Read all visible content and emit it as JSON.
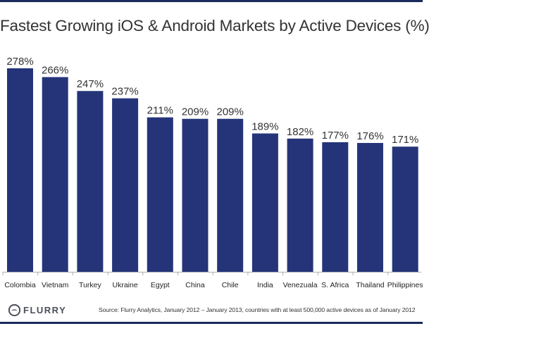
{
  "chart_data": {
    "type": "bar",
    "title": "Fastest Growing iOS & Android Markets by Active Devices (%)",
    "categories": [
      "Colombia",
      "Vietnam",
      "Turkey",
      "Ukraine",
      "Egypt",
      "China",
      "Chile",
      "India",
      "Venezuala",
      "S. Africa",
      "Thailand",
      "Philippines"
    ],
    "values": [
      278,
      266,
      247,
      237,
      211,
      209,
      209,
      189,
      182,
      177,
      176,
      171
    ],
    "data_labels": [
      "278%",
      "266%",
      "247%",
      "237%",
      "211%",
      "209%",
      "209%",
      "189%",
      "182%",
      "177%",
      "176%",
      "171%"
    ],
    "xlabel": "",
    "ylabel": "",
    "ylim": [
      0,
      278
    ],
    "grid": false,
    "legend": "none",
    "bar_color": "#253479"
  },
  "footer": {
    "logo_text": "FLURRY",
    "source": "Source: Flurry Analytics, January 2012 – January 2013, countries with at least 500,000 active devices as of January 2012"
  },
  "colors": {
    "rule": "#1b2a5c",
    "logo": "#4a4e57"
  }
}
